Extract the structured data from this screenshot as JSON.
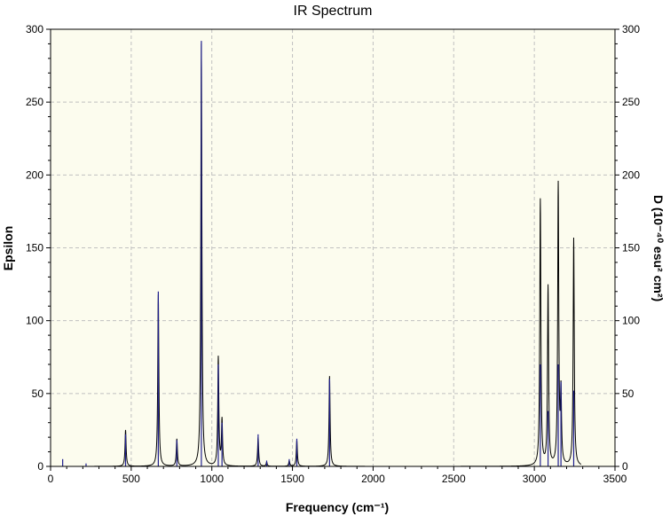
{
  "chart_data": {
    "type": "line",
    "title": "IR Spectrum",
    "xlabel": "Frequency (cm⁻¹)",
    "ylabel": "Epsilon",
    "ylabel_right": "D (10⁻⁴⁰ esu² cm²)",
    "xlim": [
      0,
      3500
    ],
    "ylim": [
      0,
      300
    ],
    "ylim_right": [
      0,
      300
    ],
    "x_ticks": [
      0,
      500,
      1000,
      1500,
      2000,
      2500,
      3000,
      3500
    ],
    "y_ticks": [
      0,
      50,
      100,
      150,
      200,
      250,
      300
    ],
    "y_ticks_right": [
      0,
      50,
      100,
      150,
      200,
      250,
      300
    ],
    "grid": true,
    "series": [
      {
        "role": "epsilon curve",
        "color": "#000000",
        "peaks": [
          {
            "x": 465,
            "y": 25
          },
          {
            "x": 668,
            "y": 118
          },
          {
            "x": 783,
            "y": 19
          },
          {
            "x": 935,
            "y": 290
          },
          {
            "x": 1040,
            "y": 76
          },
          {
            "x": 1063,
            "y": 34
          },
          {
            "x": 1287,
            "y": 20
          },
          {
            "x": 1340,
            "y": 3
          },
          {
            "x": 1480,
            "y": 4
          },
          {
            "x": 1527,
            "y": 18
          },
          {
            "x": 1730,
            "y": 62
          },
          {
            "x": 3037,
            "y": 184
          },
          {
            "x": 3085,
            "y": 125
          },
          {
            "x": 3148,
            "y": 196
          },
          {
            "x": 3165,
            "y": 59
          },
          {
            "x": 3244,
            "y": 157
          }
        ]
      },
      {
        "role": "dipole strength sticks",
        "color": "#1f1f8f",
        "sticks": [
          {
            "x": 75,
            "d": 5
          },
          {
            "x": 220,
            "d": 2
          },
          {
            "x": 465,
            "d": 22
          },
          {
            "x": 668,
            "d": 120
          },
          {
            "x": 783,
            "d": 18
          },
          {
            "x": 935,
            "d": 292
          },
          {
            "x": 1040,
            "d": 70
          },
          {
            "x": 1063,
            "d": 30
          },
          {
            "x": 1287,
            "d": 22
          },
          {
            "x": 1340,
            "d": 4
          },
          {
            "x": 1480,
            "d": 5
          },
          {
            "x": 1527,
            "d": 19
          },
          {
            "x": 1730,
            "d": 60
          },
          {
            "x": 3037,
            "d": 70
          },
          {
            "x": 3085,
            "d": 38
          },
          {
            "x": 3148,
            "d": 70
          },
          {
            "x": 3165,
            "d": 58
          },
          {
            "x": 3244,
            "d": 52
          }
        ]
      }
    ]
  },
  "style": {
    "plot_bg": "#fcfcee",
    "grid_color": "#c0c0c0",
    "axis_color": "#000000"
  }
}
